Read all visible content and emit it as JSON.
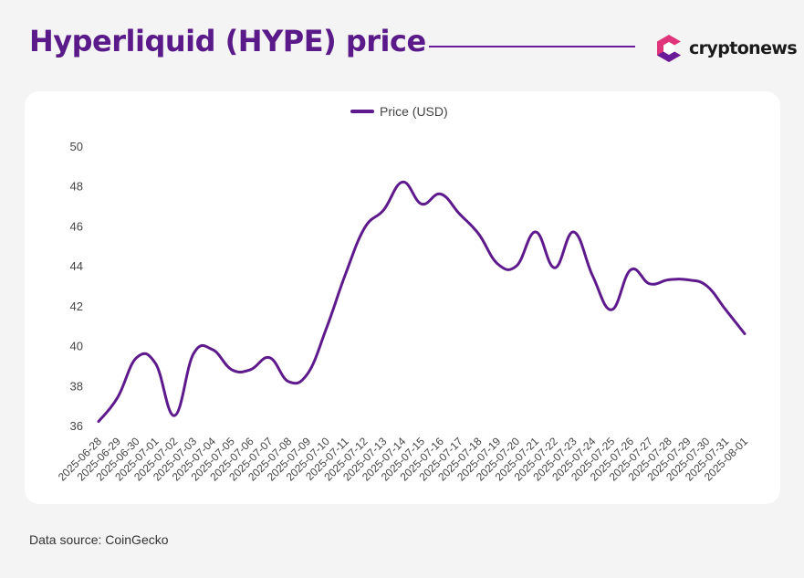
{
  "header": {
    "title": "Hyperliquid (HYPE) price",
    "brand_name": "cryptonews",
    "brand_logo": "cryptonews-logo-icon"
  },
  "footer": {
    "source": "Data source: CoinGecko"
  },
  "colors": {
    "title": "#5b1a8a",
    "line": "#5e1a8c",
    "logo_pink": "#e0357a",
    "logo_purple": "#6a1b9a"
  },
  "chart_data": {
    "type": "line",
    "title": "",
    "xlabel": "",
    "ylabel": "",
    "ylim": [
      36,
      50
    ],
    "yticks": [
      36,
      38,
      40,
      42,
      44,
      46,
      48,
      50
    ],
    "grid": false,
    "legend_position": "top-center",
    "categories": [
      "2025-06-28",
      "2025-06-29",
      "2025-06-30",
      "2025-07-01",
      "2025-07-02",
      "2025-07-03",
      "2025-07-04",
      "2025-07-05",
      "2025-07-06",
      "2025-07-07",
      "2025-07-08",
      "2025-07-09",
      "2025-07-10",
      "2025-07-11",
      "2025-07-12",
      "2025-07-13",
      "2025-07-14",
      "2025-07-15",
      "2025-07-16",
      "2025-07-17",
      "2025-07-18",
      "2025-07-19",
      "2025-07-20",
      "2025-07-21",
      "2025-07-22",
      "2025-07-23",
      "2025-07-24",
      "2025-07-25",
      "2025-07-26",
      "2025-07-27",
      "2025-07-28",
      "2025-07-29",
      "2025-07-30",
      "2025-07-31",
      "2025-08-01"
    ],
    "series": [
      {
        "name": "Price (USD)",
        "values": [
          36.2,
          37.4,
          39.4,
          39.1,
          36.5,
          39.6,
          39.8,
          38.8,
          38.8,
          39.4,
          38.2,
          38.6,
          40.9,
          43.6,
          45.9,
          46.8,
          48.2,
          47.1,
          47.6,
          46.6,
          45.6,
          44.1,
          44.0,
          45.7,
          43.9,
          45.7,
          43.5,
          41.8,
          43.8,
          43.1,
          43.3,
          43.3,
          43.0,
          41.8,
          40.6
        ]
      }
    ]
  }
}
